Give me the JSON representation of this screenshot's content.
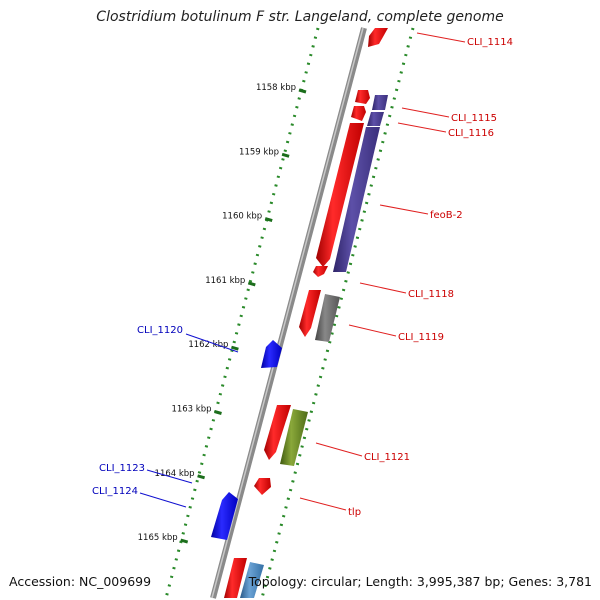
{
  "title": "Clostridium botulinum F str. Langeland, complete genome",
  "accession_text": "Accession: NC_009699",
  "topology_text": "Topology: circular; Length: 3,995,387 bp; Genes: 3,781",
  "colors": {
    "backbone": "#8a8a8a",
    "tick_dots": "#2a8a2a",
    "red_feature": "#ff1010",
    "purple_feature": "#4a3d94",
    "gray_feature": "#6a6a6a",
    "olive_feature": "#6a8c22",
    "blue_feature": "#1414f0",
    "steel_feature": "#4a84b8",
    "label_red": "#cc0000",
    "label_blue": "#0000bb"
  },
  "kbp_ticks": [
    {
      "label": "1158 kbp",
      "kb": 1158
    },
    {
      "label": "1159 kbp",
      "kb": 1159
    },
    {
      "label": "1160 kbp",
      "kb": 1160
    },
    {
      "label": "1161 kbp",
      "kb": 1161
    },
    {
      "label": "1162 kbp",
      "kb": 1162
    },
    {
      "label": "1163 kbp",
      "kb": 1163
    },
    {
      "label": "1164 kbp",
      "kb": 1164
    },
    {
      "label": "1165 kbp",
      "kb": 1165
    }
  ],
  "gene_labels_right": [
    {
      "name": "CLI_1114",
      "color": "red"
    },
    {
      "name": "CLI_1115",
      "color": "red"
    },
    {
      "name": "CLI_1116",
      "color": "red"
    },
    {
      "name": "feoB-2",
      "color": "red"
    },
    {
      "name": "CLI_1118",
      "color": "red"
    },
    {
      "name": "CLI_1119",
      "color": "red"
    },
    {
      "name": "CLI_1121",
      "color": "red"
    },
    {
      "name": "tlp",
      "color": "red"
    }
  ],
  "gene_labels_left": [
    {
      "name": "CLI_1120",
      "color": "blue"
    },
    {
      "name": "CLI_1123",
      "color": "blue"
    },
    {
      "name": "CLI_1124",
      "color": "blue"
    }
  ]
}
